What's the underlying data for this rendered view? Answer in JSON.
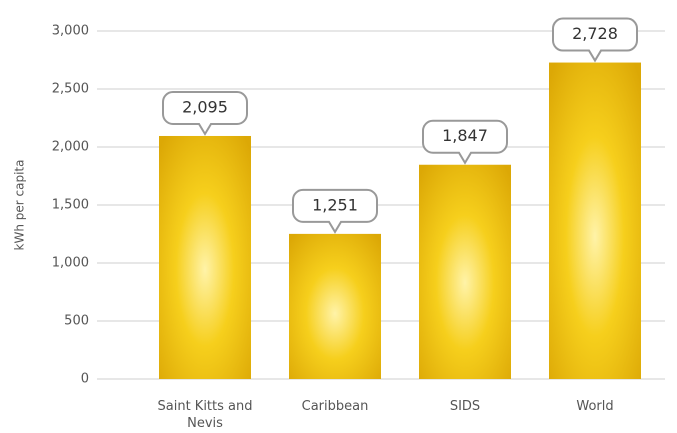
{
  "chart_data": {
    "type": "bar",
    "ylabel": "kWh per capita",
    "categories": [
      "Saint Kitts and Nevis",
      "Caribbean",
      "SIDS",
      "World"
    ],
    "values": [
      2095,
      1251,
      1847,
      2728
    ],
    "value_labels": [
      "2,095",
      "1,251",
      "1,847",
      "2,728"
    ],
    "color": "#f2c20a",
    "ylim": [
      0,
      3000
    ],
    "yticks": [
      0,
      500,
      {
        "value": 1000,
        "label": "1,000"
      },
      {
        "value": 1500,
        "label": "1,500"
      },
      {
        "value": 2000,
        "label": "2,000"
      },
      {
        "value": 2500,
        "label": "2,500"
      },
      {
        "value": 3000,
        "label": "3,000"
      }
    ],
    "grid": true
  }
}
